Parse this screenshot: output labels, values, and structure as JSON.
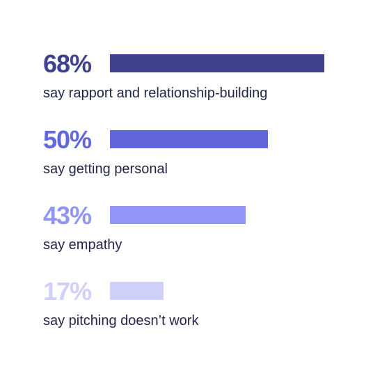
{
  "chart_data": {
    "type": "bar",
    "orientation": "horizontal",
    "axis_max_percent": 100,
    "rows": [
      {
        "value": 68,
        "value_label": "68%",
        "label": "say rapport and relationship-building",
        "color": "#3f418f"
      },
      {
        "value": 50,
        "value_label": "50%",
        "label": "say getting personal",
        "color": "#6166db"
      },
      {
        "value": 43,
        "value_label": "43%",
        "label": "say empathy",
        "color": "#9295f8"
      },
      {
        "value": 17,
        "value_label": "17%",
        "label": "say pitching doesn’t work",
        "color": "#cfd0fc"
      }
    ]
  }
}
